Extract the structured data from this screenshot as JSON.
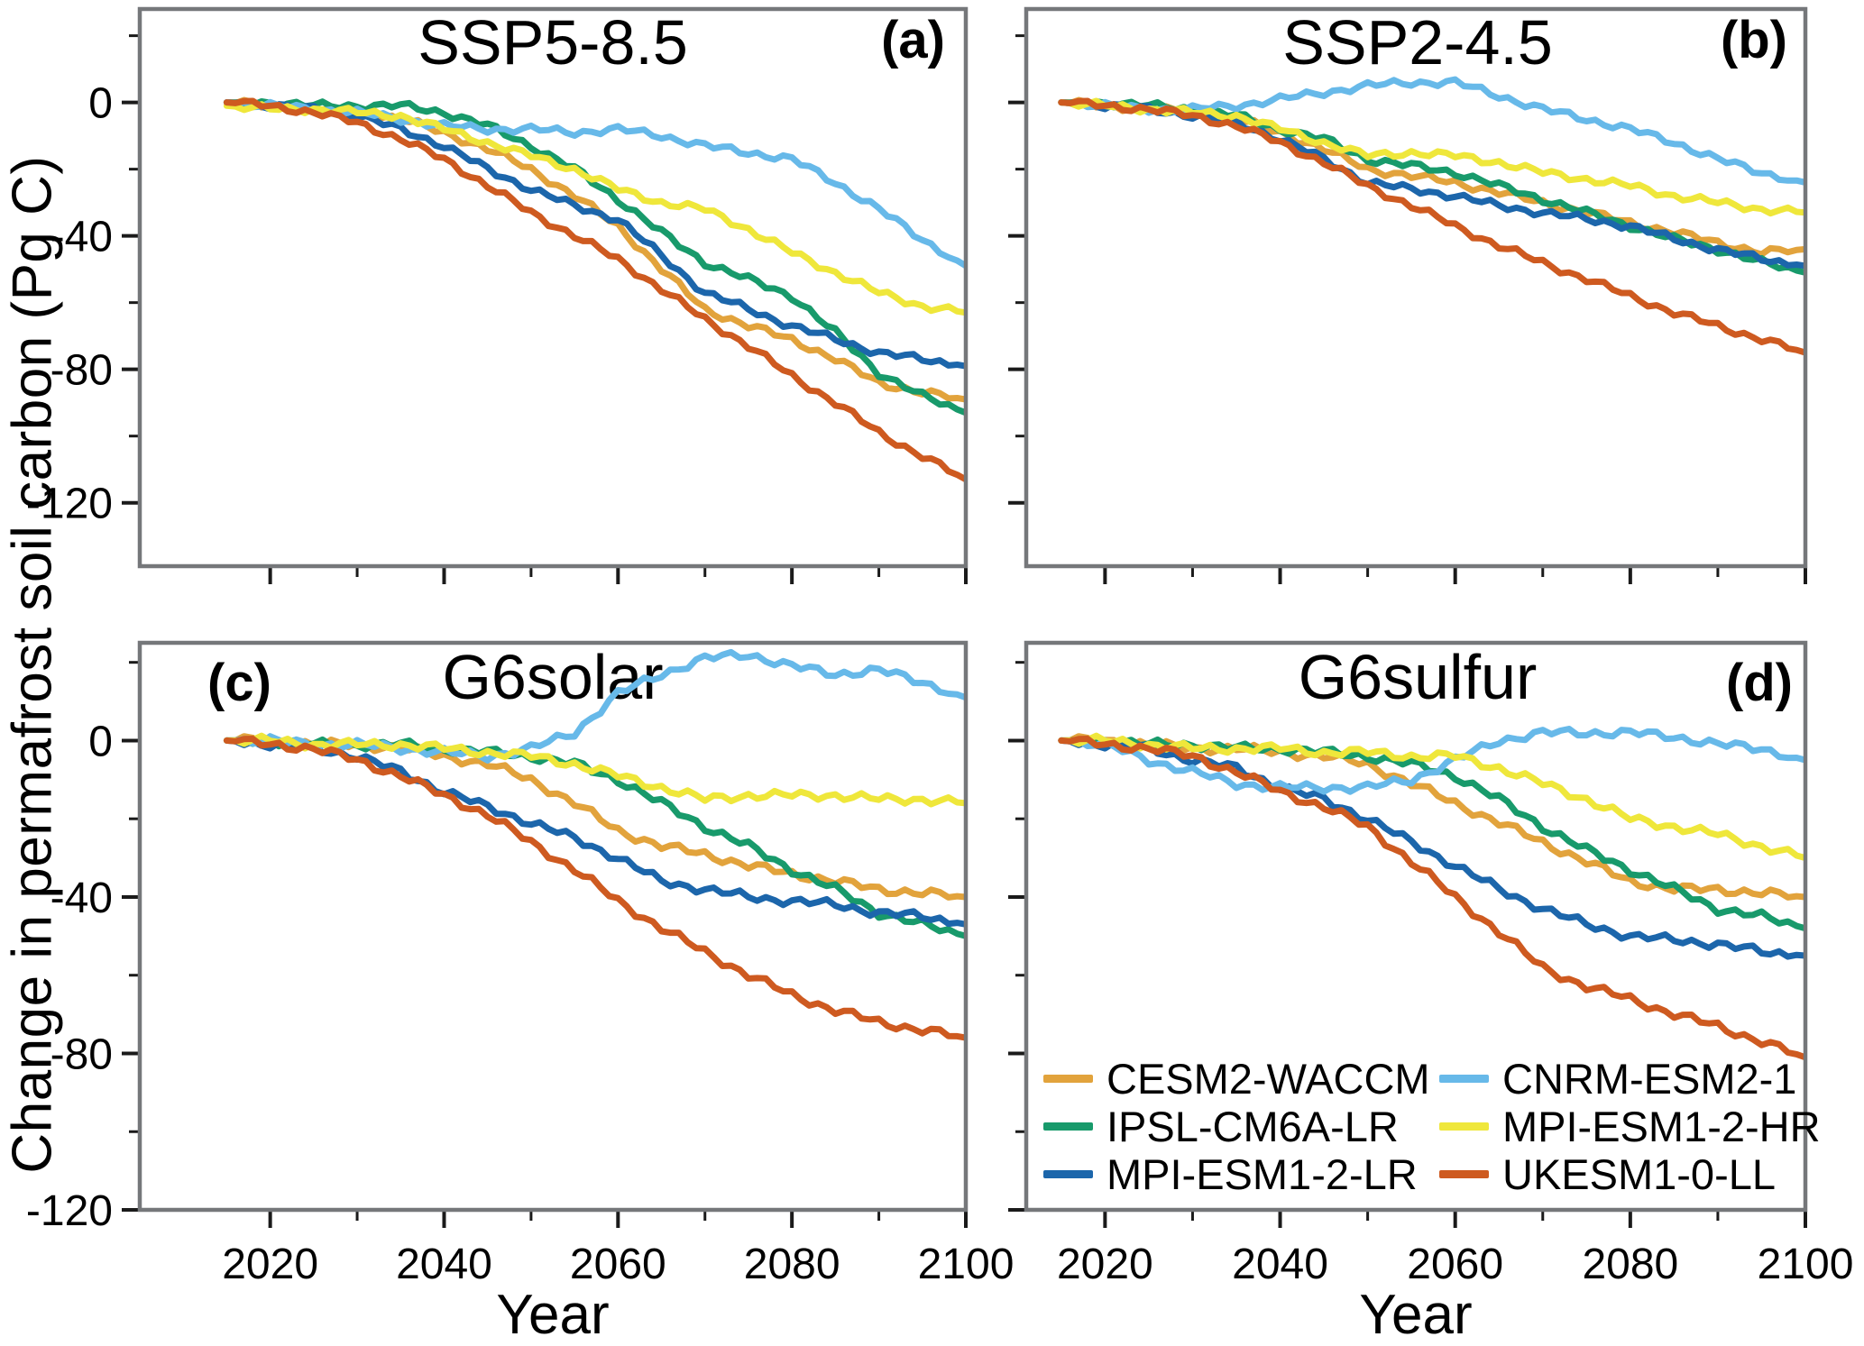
{
  "ylabel": "Change in permafrost soil carbon (Pg C)",
  "xlabel": "Year",
  "models": [
    {
      "name": "CESM2-WACCM",
      "color": "#E2A33C"
    },
    {
      "name": "IPSL-CM6A-LR",
      "color": "#189A6B"
    },
    {
      "name": "MPI-ESM1-2-LR",
      "color": "#1C66AB"
    },
    {
      "name": "CNRM-ESM2-1",
      "color": "#67B9E9"
    },
    {
      "name": "MPI-ESM1-2-HR",
      "color": "#EFE73B"
    },
    {
      "name": "UKESM1-0-LL",
      "color": "#CE5A20"
    }
  ],
  "axes": {
    "years": [
      2015,
      2020,
      2025,
      2030,
      2035,
      2040,
      2045,
      2050,
      2055,
      2060,
      2065,
      2070,
      2075,
      2080,
      2085,
      2090,
      2095,
      2100
    ],
    "yticks": [
      0,
      -40,
      -80,
      -120
    ],
    "yticks_minor": [
      20,
      -20,
      -60,
      -100
    ],
    "xticks": [
      2020,
      2040,
      2060,
      2080,
      2100
    ],
    "xticks_minor": [
      2030,
      2050,
      2070,
      2090
    ]
  },
  "chart_data": [
    {
      "id": "a",
      "type": "line",
      "title": "SSP5-8.5",
      "label": "(a)",
      "xlabel": "Year",
      "ylabel": "Change in permafrost soil carbon (Pg C)",
      "xlim": [
        2005,
        2100
      ],
      "ylim": [
        -139,
        28
      ],
      "grid": false,
      "series": [
        {
          "model": "CESM2-WACCM",
          "values": [
            0,
            -1,
            -2,
            -3,
            -5,
            -9,
            -14,
            -20,
            -28,
            -37,
            -50,
            -62,
            -67,
            -71,
            -77,
            -84,
            -87,
            -89
          ]
        },
        {
          "model": "IPSL-CM6A-LR",
          "values": [
            0,
            0,
            -1,
            -1,
            -1,
            -3,
            -7,
            -13,
            -20,
            -29,
            -39,
            -48,
            -53,
            -58,
            -69,
            -81,
            -88,
            -93
          ]
        },
        {
          "model": "MPI-ESM1-2-LR",
          "values": [
            0,
            -1,
            -2,
            -4,
            -8,
            -13,
            -20,
            -26,
            -31,
            -35,
            -46,
            -57,
            -62,
            -67,
            -71,
            -75,
            -77,
            -79
          ]
        },
        {
          "model": "CNRM-ESM2-1",
          "values": [
            0,
            -1,
            -2,
            -3,
            -5,
            -7,
            -8,
            -8,
            -9,
            -8,
            -10,
            -13,
            -15,
            -17,
            -24,
            -32,
            -41,
            -49
          ]
        },
        {
          "model": "MPI-ESM1-2-HR",
          "values": [
            -1,
            -2,
            -2,
            -3,
            -4,
            -8,
            -12,
            -16,
            -20,
            -26,
            -30,
            -32,
            -38,
            -45,
            -51,
            -57,
            -61,
            -63
          ]
        },
        {
          "model": "UKESM1-0-LL",
          "values": [
            0,
            -1,
            -3,
            -6,
            -11,
            -17,
            -25,
            -33,
            -40,
            -47,
            -56,
            -65,
            -73,
            -82,
            -90,
            -99,
            -106,
            -113
          ]
        }
      ]
    },
    {
      "id": "b",
      "type": "line",
      "title": "SSP2-4.5",
      "label": "(b)",
      "xlabel": "Year",
      "ylabel": "Change in permafrost soil carbon (Pg C)",
      "xlim": [
        2011,
        2100
      ],
      "ylim": [
        -139,
        28
      ],
      "grid": false,
      "series": [
        {
          "model": "CESM2-WACCM",
          "values": [
            0,
            -1,
            -2,
            -3,
            -5,
            -9,
            -14,
            -20,
            -22,
            -24,
            -27,
            -30,
            -33,
            -36,
            -39,
            -42,
            -45,
            -44
          ]
        },
        {
          "model": "IPSL-CM6A-LR",
          "values": [
            0,
            0,
            -1,
            -2,
            -4,
            -8,
            -11,
            -17,
            -19,
            -21,
            -25,
            -29,
            -33,
            -37,
            -41,
            -44,
            -48,
            -51
          ]
        },
        {
          "model": "MPI-ESM1-2-LR",
          "values": [
            0,
            -1,
            -2,
            -4,
            -6,
            -11,
            -17,
            -24,
            -26,
            -28,
            -31,
            -33,
            -35,
            -37,
            -41,
            -44,
            -47,
            -49
          ]
        },
        {
          "model": "CNRM-ESM2-1",
          "values": [
            0,
            -1,
            -2,
            -2,
            -1,
            1,
            3,
            5,
            6,
            6,
            2,
            -2,
            -5,
            -8,
            -12,
            -17,
            -21,
            -24
          ]
        },
        {
          "model": "MPI-ESM1-2-HR",
          "values": [
            0,
            -1,
            -2,
            -3,
            -4,
            -8,
            -12,
            -16,
            -15,
            -16,
            -18,
            -21,
            -23,
            -25,
            -28,
            -30,
            -32,
            -33
          ]
        },
        {
          "model": "UKESM1-0-LL",
          "values": [
            0,
            -1,
            -2,
            -4,
            -7,
            -12,
            -18,
            -25,
            -31,
            -37,
            -43,
            -48,
            -53,
            -58,
            -63,
            -67,
            -71,
            -75
          ]
        }
      ]
    },
    {
      "id": "c",
      "type": "line",
      "title": "G6solar",
      "label": "(c)",
      "xlabel": "Year",
      "ylabel": "Change in permafrost soil carbon (Pg C)",
      "xlim": [
        2005,
        2100
      ],
      "ylim": [
        -120,
        25
      ],
      "grid": false,
      "series": [
        {
          "model": "CESM2-WACCM",
          "values": [
            0,
            0,
            -1,
            -1,
            -2,
            -4,
            -6,
            -10,
            -16,
            -23,
            -27,
            -29,
            -32,
            -34,
            -36,
            -38,
            -39,
            -40
          ]
        },
        {
          "model": "IPSL-CM6A-LR",
          "values": [
            0,
            0,
            -1,
            -1,
            -1,
            -2,
            -3,
            -4,
            -6,
            -10,
            -16,
            -22,
            -27,
            -33,
            -38,
            -44,
            -47,
            -50
          ]
        },
        {
          "model": "MPI-ESM1-2-LR",
          "values": [
            0,
            -1,
            -2,
            -4,
            -8,
            -13,
            -17,
            -21,
            -25,
            -30,
            -36,
            -38,
            -40,
            -41,
            -42,
            -44,
            -45,
            -47
          ]
        },
        {
          "model": "CNRM-ESM2-1",
          "values": [
            0,
            0,
            -1,
            -1,
            -2,
            -3,
            -4,
            -2,
            2,
            12,
            17,
            21,
            22,
            19,
            17,
            18,
            15,
            11
          ]
        },
        {
          "model": "MPI-ESM1-2-HR",
          "values": [
            0,
            0,
            -1,
            -1,
            -1,
            -2,
            -3,
            -4,
            -6,
            -9,
            -12,
            -15,
            -14,
            -14,
            -14,
            -15,
            -15,
            -16
          ]
        },
        {
          "model": "UKESM1-0-LL",
          "values": [
            0,
            -1,
            -2,
            -5,
            -9,
            -14,
            -19,
            -26,
            -33,
            -41,
            -48,
            -54,
            -60,
            -65,
            -69,
            -72,
            -74,
            -76
          ]
        }
      ]
    },
    {
      "id": "d",
      "type": "line",
      "title": "G6sulfur",
      "label": "(d)",
      "xlabel": "Year",
      "ylabel": "Change in permafrost soil carbon (Pg C)",
      "xlim": [
        2011,
        2100
      ],
      "ylim": [
        -120,
        25
      ],
      "grid": false,
      "series": [
        {
          "model": "CESM2-WACCM",
          "values": [
            0,
            0,
            -1,
            -2,
            -2,
            -3,
            -4,
            -6,
            -11,
            -16,
            -21,
            -26,
            -31,
            -36,
            -38,
            -38,
            -39,
            -40
          ]
        },
        {
          "model": "IPSL-CM6A-LR",
          "values": [
            0,
            0,
            -1,
            -1,
            -2,
            -2,
            -3,
            -4,
            -6,
            -9,
            -15,
            -22,
            -28,
            -33,
            -38,
            -43,
            -45,
            -48
          ]
        },
        {
          "model": "MPI-ESM1-2-LR",
          "values": [
            0,
            -1,
            -2,
            -5,
            -7,
            -12,
            -15,
            -20,
            -26,
            -32,
            -38,
            -43,
            -47,
            -50,
            -51,
            -52,
            -54,
            -55
          ]
        },
        {
          "model": "CNRM-ESM2-1",
          "values": [
            0,
            -1,
            -5,
            -8,
            -11,
            -12,
            -12,
            -12,
            -10,
            -5,
            0,
            2,
            2,
            2,
            1,
            -1,
            -2,
            -5
          ]
        },
        {
          "model": "MPI-ESM1-2-HR",
          "values": [
            0,
            0,
            -1,
            -2,
            -2,
            -2,
            -3,
            -3,
            -4,
            -4,
            -7,
            -11,
            -15,
            -20,
            -22,
            -24,
            -27,
            -30
          ]
        },
        {
          "model": "UKESM1-0-LL",
          "values": [
            0,
            -1,
            -2,
            -4,
            -8,
            -13,
            -17,
            -22,
            -31,
            -40,
            -49,
            -58,
            -63,
            -66,
            -70,
            -73,
            -77,
            -81
          ]
        }
      ]
    }
  ],
  "legend": {
    "col1": [
      "CESM2-WACCM",
      "IPSL-CM6A-LR",
      "MPI-ESM1-2-LR"
    ],
    "col2": [
      "CNRM-ESM2-1",
      "MPI-ESM1-2-HR",
      "UKESM1-0-LL"
    ]
  }
}
